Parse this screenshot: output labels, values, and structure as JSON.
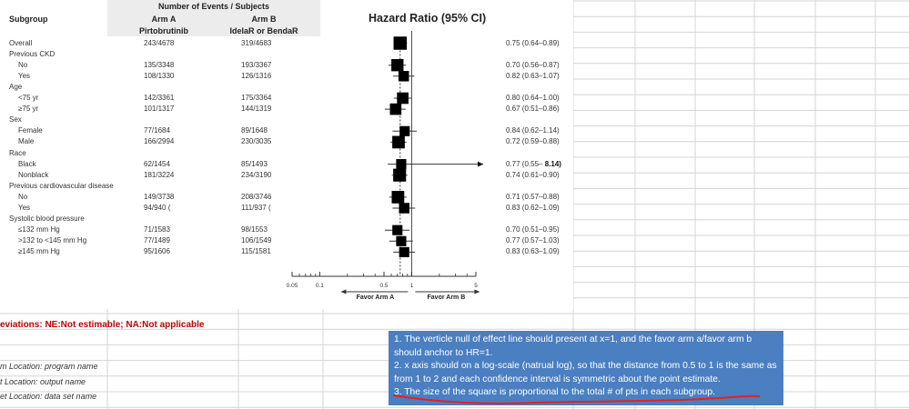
{
  "header": {
    "subgroup": "Subgroup",
    "events_title": "Number of Events / Subjects",
    "arm_a_label": "Arm A",
    "arm_a_drug": "Pirtobrutinib",
    "arm_b_label": "Arm B",
    "arm_b_drug": "IdelaR or BendaR",
    "hr_title": "Hazard Ratio (95% CI)"
  },
  "chart_data": {
    "type": "forest",
    "title": "Hazard Ratio (95% CI)",
    "scale": "log",
    "xlim": [
      0.05,
      5
    ],
    "ticks": [
      "0.05",
      "0.1",
      "0.5",
      "1",
      "5"
    ],
    "tick_values": [
      0.05,
      0.1,
      0.5,
      1,
      5
    ],
    "reference_line": 1,
    "favor_left": "Favor Arm A",
    "favor_right": "Favor Arm B",
    "rows": [
      {
        "label": "Overall",
        "indent": 0,
        "arm_a": "243/4678",
        "arm_b": "319/4683",
        "hr": 0.75,
        "lo": 0.64,
        "hi": 0.89,
        "ci_text": "0.75 (0.64–0.89)",
        "size": 1.0
      },
      {
        "label": "Previous CKD",
        "indent": 0
      },
      {
        "label": "No",
        "indent": 1,
        "arm_a": "135/3348",
        "arm_b": "193/3367",
        "hr": 0.7,
        "lo": 0.56,
        "hi": 0.87,
        "ci_text": "0.70 (0.56–0.87)",
        "size": 0.85
      },
      {
        "label": "Yes",
        "indent": 1,
        "arm_a": "108/1330",
        "arm_b": "126/1316",
        "hr": 0.82,
        "lo": 0.63,
        "hi": 1.07,
        "ci_text": "0.82 (0.63–1.07)",
        "size": 0.6
      },
      {
        "label": "Age",
        "indent": 0
      },
      {
        "label": "<75 yr",
        "indent": 1,
        "arm_a": "142/3361",
        "arm_b": "175/3364",
        "hr": 0.8,
        "lo": 0.64,
        "hi": 1.0,
        "ci_text": "0.80 (0.64–1.00)",
        "size": 0.75
      },
      {
        "label": "≥75 yr",
        "indent": 1,
        "arm_a": "101/1317",
        "arm_b": "144/1319",
        "hr": 0.67,
        "lo": 0.51,
        "hi": 0.86,
        "ci_text": "0.67 (0.51–0.86)",
        "size": 0.75
      },
      {
        "label": "Sex",
        "indent": 0
      },
      {
        "label": "Female",
        "indent": 1,
        "arm_a": "77/1684",
        "arm_b": "89/1648",
        "hr": 0.84,
        "lo": 0.62,
        "hi": 1.14,
        "ci_text": "0.84 (0.62–1.14)",
        "size": 0.55
      },
      {
        "label": "Male",
        "indent": 1,
        "arm_a": "166/2994",
        "arm_b": "230/3035",
        "hr": 0.72,
        "lo": 0.59,
        "hi": 0.88,
        "ci_text": "0.72 (0.59–0.88)",
        "size": 0.9
      },
      {
        "label": "Race",
        "indent": 0
      },
      {
        "label": "Black",
        "indent": 1,
        "arm_a": "62/1454",
        "arm_b": "85/1493",
        "hr": 0.77,
        "lo": 0.55,
        "hi": 8.14,
        "ci_text": "0.77 (0.55–",
        "ci_bold": "8.14)",
        "size": 0.55,
        "arrow": true
      },
      {
        "label": "Nonblack",
        "indent": 1,
        "arm_a": "181/3224",
        "arm_b": "234/3190",
        "hr": 0.74,
        "lo": 0.61,
        "hi": 0.9,
        "ci_text": "0.74 (0.61–0.90)",
        "size": 0.95
      },
      {
        "label": "Previous cardiovascular disease",
        "indent": 0
      },
      {
        "label": "No",
        "indent": 1,
        "arm_a": "149/3738",
        "arm_b": "208/3746",
        "hr": 0.71,
        "lo": 0.57,
        "hi": 0.88,
        "ci_text": "0.71 (0.57–0.88)",
        "size": 0.9
      },
      {
        "label": "Yes",
        "indent": 1,
        "arm_a": "94/940 (",
        "arm_b": "111/937 (",
        "hr": 0.83,
        "lo": 0.62,
        "hi": 1.09,
        "ci_text": "0.83 (0.62–1.09)",
        "size": 0.6
      },
      {
        "label": "Systolic blood pressure",
        "indent": 0
      },
      {
        "label": "≤132 mm Hg",
        "indent": 1,
        "arm_a": "71/1583",
        "arm_b": "98/1553",
        "hr": 0.7,
        "lo": 0.51,
        "hi": 0.95,
        "ci_text": "0.70 (0.51–0.95)",
        "size": 0.55
      },
      {
        "label": ">132 to <145 mm Hg",
        "indent": 1,
        "arm_a": "77/1489",
        "arm_b": "106/1549",
        "hr": 0.77,
        "lo": 0.57,
        "hi": 1.03,
        "ci_text": "0.77 (0.57–1.03)",
        "size": 0.55
      },
      {
        "label": "≥145 mm Hg",
        "indent": 1,
        "arm_a": "95/1606",
        "arm_b": "115/1581",
        "hr": 0.83,
        "lo": 0.63,
        "hi": 1.09,
        "ci_text": "0.83 (0.63–1.09)",
        "size": 0.55
      }
    ]
  },
  "spreadsheet": {
    "abbreviations": "eviations: NE:Not estimable; NA:Not applicable",
    "notes": [
      "m Location: program name",
      "t Location: output name",
      "et Location: data set name"
    ]
  },
  "annotation": {
    "lines": [
      "1. The verticle null of effect line should present at x=1, and the favor arm a/favor arm b should anchor to HR=1.",
      "2. x axis should on a log-scale (natrual log), so that the distance from 0.5 to 1 is the same as from 1 to 2 and each confidence interval is symmetric about the point estimate.",
      "3. The size of the square is proportional to the total # of pts in each subgroup."
    ],
    "underline_color": "#e8201c",
    "box_color": "#4a7fc1"
  }
}
